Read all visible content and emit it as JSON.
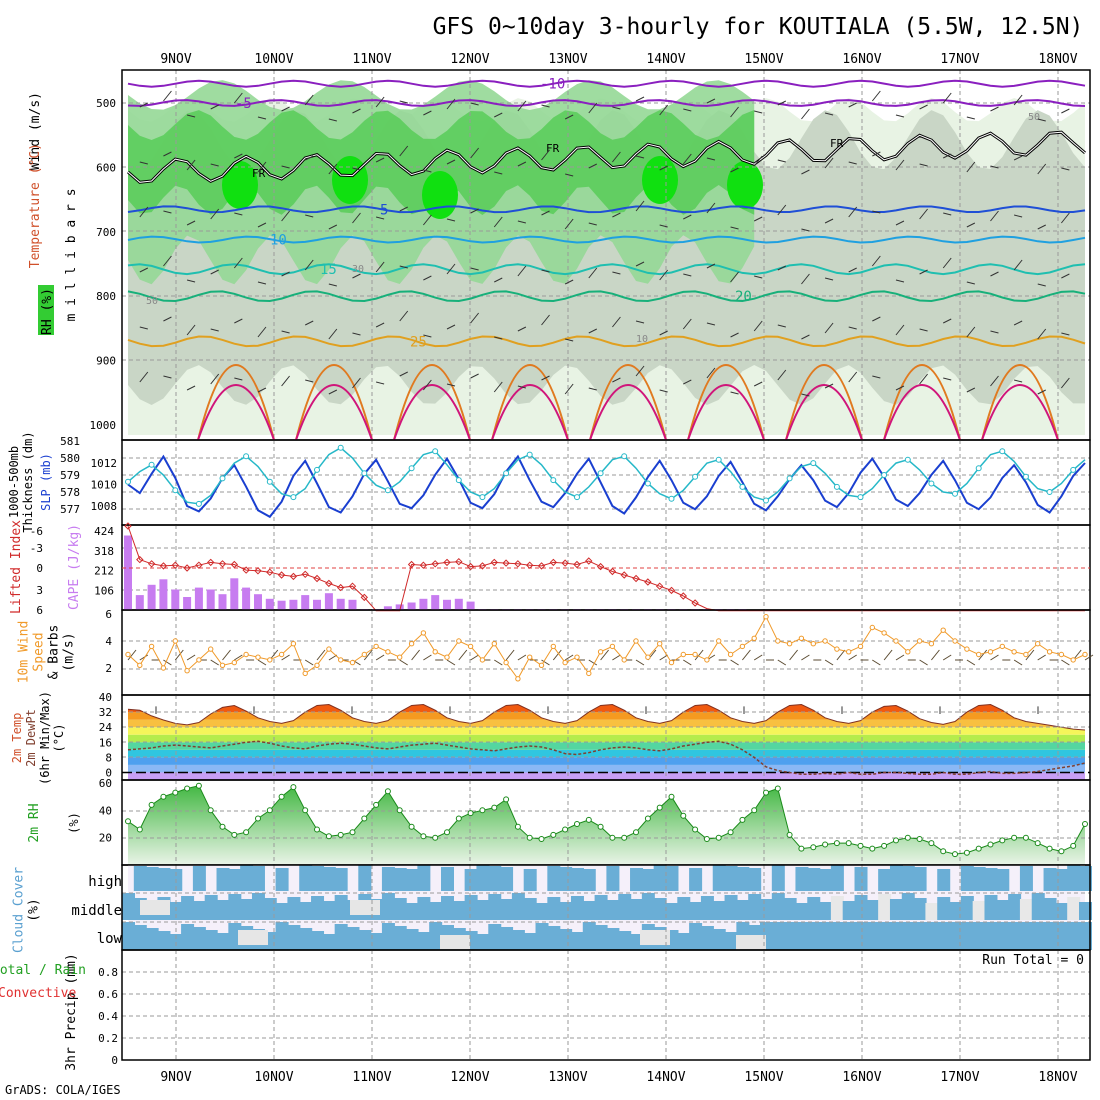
{
  "title": "GFS 0~10day 3-hourly for KOUTIALA (5.5W, 12.5N)",
  "footer": "GrADS: COLA/IGES",
  "run_total_label": "Run Total = 0",
  "chart_data": [
    {
      "id": "upper-air",
      "type": "heatmap",
      "ylabel": "m i l l i b a r s",
      "side_labels": {
        "wind": "Wind (m/s)",
        "temp": "Temperature (°C)",
        "rh": "RH (%)"
      },
      "x_dates": [
        "9NOV",
        "10NOV",
        "11NOV",
        "12NOV",
        "13NOV",
        "14NOV",
        "15NOV",
        "16NOV",
        "17NOV",
        "18NOV"
      ],
      "y_ticks": [
        500,
        600,
        700,
        800,
        900,
        1000
      ],
      "temperature_contours": [
        {
          "label": "-10",
          "pressure": 470,
          "color": "#8a1fbf"
        },
        {
          "label": "-5",
          "pressure": 500,
          "color": "#8a1fbf"
        },
        {
          "label": "5",
          "pressure": 665,
          "color": "#1f4fd6"
        },
        {
          "label": "10",
          "pressure": 712,
          "color": "#1fa0e0"
        },
        {
          "label": "15",
          "pressure": 758,
          "color": "#1fbfb0"
        },
        {
          "label": "20",
          "pressure": 800,
          "color": "#17b07a"
        },
        {
          "label": "25",
          "pressure": 870,
          "color": "#e0a020"
        }
      ],
      "freezing_level_label": "FR",
      "rh_labels": [
        "50",
        "30",
        "10"
      ]
    },
    {
      "id": "thickness-slp",
      "type": "line",
      "ylabel_left": "1000-500mb Thickness (dm)",
      "ylabel_right": "SLP (mb)",
      "left_ticks": [
        577,
        578,
        579,
        580,
        581
      ],
      "right_ticks": [
        1008,
        1010,
        1012
      ],
      "series": [
        {
          "values": [
            1010.0,
            1009.2,
            1011.0,
            1012.6,
            1010.6,
            1008.0,
            1007.5,
            1008.7,
            1010.6,
            1011.8,
            1009.8,
            1007.6,
            1007.0,
            1008.4,
            1010.8,
            1012.2,
            1010.1,
            1007.9,
            1007.4,
            1008.9,
            1011.0,
            1012.3,
            1010.3,
            1008.2,
            1007.8,
            1009.0,
            1010.9,
            1012.4,
            1010.5,
            1008.3,
            1007.8,
            1009.1,
            1011.2,
            1012.6,
            1010.4,
            1008.4,
            1007.9,
            1009.2,
            1011.0,
            1012.4,
            1010.2,
            1008.0,
            1007.3,
            1008.8,
            1010.7,
            1012.2,
            1010.4,
            1008.3,
            1007.7,
            1008.9,
            1010.8,
            1012.1,
            1010.2,
            1008.2,
            1007.6,
            1008.9,
            1010.5,
            1011.8,
            1010.4,
            1008.5,
            1007.9,
            1009.2,
            1011.1,
            1012.4,
            1010.7,
            1008.6,
            1008.0,
            1009.2,
            1010.9,
            1012.2,
            1010.4,
            1008.3,
            1007.7,
            1008.8,
            1010.6,
            1011.8,
            1010.2,
            1008.1,
            1007.4,
            1008.9,
            1010.8,
            1012.0
          ]
        },
        {
          "values": [
            578.6,
            579.2,
            579.6,
            579.0,
            578.1,
            577.4,
            577.3,
            577.8,
            578.8,
            579.7,
            580.1,
            579.5,
            578.6,
            577.9,
            577.7,
            578.2,
            579.3,
            580.2,
            580.6,
            580.0,
            579.1,
            578.4,
            578.1,
            578.6,
            579.4,
            580.2,
            580.4,
            579.6,
            578.7,
            578.0,
            577.7,
            578.2,
            579.1,
            579.9,
            580.2,
            579.6,
            578.7,
            578.0,
            577.7,
            578.3,
            579.1,
            579.9,
            580.1,
            579.4,
            578.5,
            577.9,
            577.6,
            578.1,
            578.9,
            579.7,
            579.9,
            579.2,
            578.3,
            577.7,
            577.5,
            578.0,
            578.8,
            579.5,
            579.7,
            579.1,
            578.3,
            577.8,
            577.7,
            578.2,
            579.0,
            579.7,
            579.9,
            579.3,
            578.5,
            578.0,
            577.9,
            578.5,
            579.4,
            580.2,
            580.4,
            579.8,
            578.9,
            578.2,
            578.0,
            578.5,
            579.3,
            579.9
          ]
        }
      ]
    },
    {
      "id": "cape-li",
      "type": "bar",
      "ylabel_left": "Lifted Index",
      "ylabel_right": "CAPE (J/kg)",
      "left_ticks": [
        "-6",
        "-3",
        "0",
        "3",
        "6"
      ],
      "right_ticks": [
        106,
        212,
        318,
        424
      ],
      "series": [
        {
          "values": [
            400,
            80,
            135,
            165,
            110,
            70,
            120,
            110,
            85,
            170,
            120,
            85,
            60,
            50,
            55,
            80,
            55,
            90,
            60,
            55,
            5,
            5,
            20,
            30,
            40,
            60,
            80,
            55,
            60,
            45,
            5,
            5,
            5,
            5,
            5,
            5,
            5,
            5,
            5,
            5,
            5,
            5,
            5,
            5,
            5,
            5,
            5,
            5,
            5,
            5,
            5,
            5,
            5,
            0,
            0,
            0,
            0,
            0,
            0,
            0,
            0,
            0,
            0,
            0,
            0,
            0,
            0,
            0,
            0,
            0,
            0,
            0,
            0,
            0,
            0,
            0,
            0,
            0,
            0,
            0,
            0,
            0
          ]
        },
        {
          "values": [
            -6.0,
            -1.2,
            -0.6,
            -0.3,
            -0.4,
            0.0,
            -0.4,
            -0.8,
            -0.6,
            -0.5,
            0.3,
            0.4,
            0.6,
            1.0,
            1.2,
            0.9,
            1.5,
            2.2,
            2.8,
            2.6,
            4.2,
            6.1,
            6.1,
            6.1,
            -0.5,
            -0.4,
            -0.6,
            -0.8,
            -0.9,
            -0.2,
            -0.3,
            -0.8,
            -0.7,
            -0.6,
            -0.4,
            -0.3,
            -0.8,
            -0.7,
            -0.5,
            -1.0,
            -0.2,
            0.5,
            1.0,
            1.5,
            2.0,
            2.6,
            3.2,
            4.0,
            5.0,
            5.8,
            6.1,
            6.1,
            6.1,
            6.1,
            6.1,
            6.1,
            6.1,
            6.1,
            6.1,
            6.1,
            6.1,
            6.1,
            6.1,
            6.1,
            6.1,
            6.1,
            6.1,
            6.1,
            6.1,
            6.1,
            6.1,
            6.1,
            6.1,
            6.1,
            6.1,
            6.1,
            6.1,
            6.1,
            6.1,
            6.1,
            6.1,
            6.1
          ]
        }
      ]
    },
    {
      "id": "wind10m",
      "type": "line",
      "ylabel": "10m Wind Speed (m/s) & Barbs",
      "ylabel_lines": [
        "10m Wind",
        "Speed",
        "& Barbs",
        "(m/s)"
      ],
      "y_ticks": [
        2,
        4,
        6
      ],
      "ylim": [
        0,
        6
      ],
      "series": [
        {
          "values": [
            3.0,
            2.2,
            3.6,
            2.0,
            4.0,
            1.8,
            2.6,
            3.4,
            2.2,
            2.4,
            3.0,
            2.8,
            2.6,
            3.0,
            3.8,
            1.6,
            2.2,
            3.4,
            2.6,
            2.4,
            3.0,
            3.6,
            3.2,
            2.8,
            3.8,
            4.6,
            3.2,
            2.8,
            4.0,
            3.6,
            2.6,
            3.8,
            2.4,
            1.2,
            2.8,
            2.2,
            3.6,
            2.4,
            2.8,
            1.6,
            3.2,
            3.6,
            2.6,
            4.0,
            2.8,
            3.8,
            2.4,
            3.0,
            3.0,
            2.6,
            4.0,
            3.0,
            3.6,
            4.2,
            5.8,
            4.0,
            3.8,
            4.2,
            3.8,
            4.0,
            3.4,
            3.2,
            3.6,
            5.0,
            4.6,
            4.0,
            3.2,
            4.0,
            3.8,
            4.8,
            4.0,
            3.4,
            3.0,
            3.2,
            3.6,
            3.2,
            3.0,
            3.8,
            3.2,
            3.0,
            2.6,
            3.0
          ]
        }
      ]
    },
    {
      "id": "temp2m",
      "type": "area",
      "ylabel_lines": [
        "2m Temp",
        "2m DewPt",
        "(6hr Min/Max)",
        "(°C)"
      ],
      "y_ticks": [
        0,
        8,
        16,
        24,
        32,
        40
      ],
      "ylim": [
        -4,
        40
      ],
      "series": [
        {
          "values": [
            33.5,
            33.0,
            30.0,
            27.8,
            26.0,
            25.2,
            26.5,
            31.0,
            34.5,
            35.5,
            32.5,
            29.0,
            27.0,
            26.0,
            27.5,
            32.0,
            35.5,
            36.0,
            33.0,
            29.0,
            27.0,
            26.0,
            27.5,
            32.0,
            35.5,
            36.0,
            33.0,
            29.0,
            27.0,
            26.0,
            27.5,
            32.0,
            35.5,
            36.0,
            33.0,
            29.0,
            27.0,
            26.0,
            27.5,
            32.0,
            35.5,
            36.0,
            33.0,
            29.0,
            27.0,
            26.0,
            27.5,
            32.0,
            35.5,
            36.0,
            33.0,
            29.0,
            27.0,
            26.0,
            27.5,
            32.0,
            35.5,
            36.0,
            33.0,
            29.0,
            27.0,
            26.0,
            27.5,
            32.0,
            35.0,
            35.5,
            32.5,
            28.5,
            26.5,
            25.5,
            27.0,
            32.0,
            35.5,
            36.0,
            33.0,
            29.0,
            27.0,
            26.0,
            25.0,
            24.0,
            23.0,
            22.5
          ]
        },
        {
          "values": [
            12,
            12.5,
            13,
            14,
            14.5,
            14,
            13.5,
            13,
            14,
            15,
            16,
            16.5,
            15.5,
            14,
            13,
            12.5,
            14,
            15,
            15.5,
            15,
            14,
            13,
            12.5,
            13.5,
            14.5,
            15,
            15.5,
            14.5,
            13.5,
            12.5,
            12,
            11.5,
            12.5,
            13.5,
            14,
            13.5,
            12,
            10,
            9.5,
            10.5,
            12,
            13,
            13.5,
            13,
            12,
            11.5,
            12.5,
            14,
            15,
            16,
            16.5,
            15,
            12,
            8,
            3,
            1,
            0,
            -1,
            -1,
            -0.5,
            -1,
            0,
            -1,
            -1,
            0,
            0,
            -0.5,
            -1,
            -1,
            0,
            -1,
            -1,
            0,
            0.5,
            -0.5,
            -0.5,
            0,
            0.5,
            1.5,
            2.5,
            3.5,
            5.0
          ]
        }
      ]
    },
    {
      "id": "rh2m",
      "type": "area",
      "ylabel": "2m RH",
      "ylabel_unit": "(%)",
      "y_ticks": [
        20,
        40,
        60
      ],
      "ylim": [
        0,
        60
      ],
      "series": [
        {
          "values": [
            32,
            26,
            44,
            50,
            53,
            56,
            58,
            40,
            28,
            22,
            24,
            34,
            40,
            50,
            57,
            40,
            26,
            21,
            22,
            24,
            34,
            44,
            54,
            40,
            28,
            21,
            20,
            24,
            34,
            38,
            40,
            42,
            48,
            28,
            20,
            19,
            22,
            26,
            30,
            33,
            28,
            20,
            20,
            24,
            34,
            42,
            50,
            36,
            26,
            19,
            20,
            24,
            33,
            40,
            53,
            56,
            22,
            12,
            13,
            15,
            16,
            16,
            14,
            12,
            14,
            18,
            20,
            19,
            16,
            10,
            8,
            9,
            12,
            15,
            18,
            20,
            20,
            16,
            12,
            10,
            14,
            30
          ]
        }
      ]
    },
    {
      "id": "cloud",
      "type": "heatmap",
      "ylabel": "Cloud Cover (%)",
      "ylabel_lines": [
        "Cloud Cover",
        "(%)"
      ],
      "rows": [
        "high",
        "middle",
        "low"
      ]
    },
    {
      "id": "precip",
      "type": "bar",
      "ylabel": "3hr Precip (mm)",
      "side_labels": [
        "Total / Rain",
        "Convective"
      ],
      "y_ticks": [
        0,
        0.2,
        0.4,
        0.6,
        0.8
      ],
      "ylim": [
        0,
        1
      ],
      "values": []
    }
  ]
}
